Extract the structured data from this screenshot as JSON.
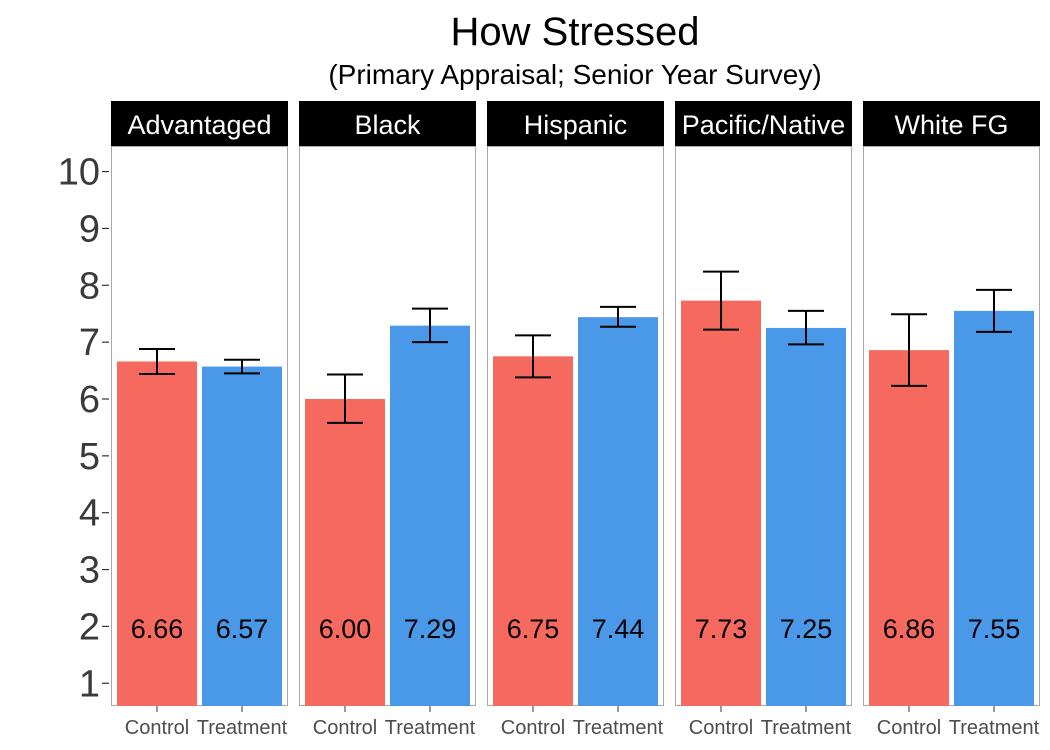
{
  "chart_data": {
    "type": "bar",
    "title": "How Stressed",
    "subtitle": "(Primary Appraisal; Senior Year Survey)",
    "xlabel": "",
    "ylabel": "",
    "ylim": [
      0.6,
      10.45
    ],
    "yticks": [
      "1",
      "2",
      "3",
      "4",
      "5",
      "6",
      "7",
      "8",
      "9",
      "10"
    ],
    "categories": [
      "Control",
      "Treatment"
    ],
    "grid": false,
    "legend": "none",
    "colors": {
      "Control": "#F5695F",
      "Treatment": "#4A98E8"
    },
    "panels": [
      {
        "name": "Advantaged",
        "bars": [
          {
            "group": "Control",
            "value": 6.66,
            "label": "6.66",
            "err_low": 6.44,
            "err_high": 6.88
          },
          {
            "group": "Treatment",
            "value": 6.57,
            "label": "6.57",
            "err_low": 6.45,
            "err_high": 6.69
          }
        ]
      },
      {
        "name": "Black",
        "bars": [
          {
            "group": "Control",
            "value": 6.0,
            "label": "6.00",
            "err_low": 5.58,
            "err_high": 6.43
          },
          {
            "group": "Treatment",
            "value": 7.29,
            "label": "7.29",
            "err_low": 7.0,
            "err_high": 7.59
          }
        ]
      },
      {
        "name": "Hispanic",
        "bars": [
          {
            "group": "Control",
            "value": 6.75,
            "label": "6.75",
            "err_low": 6.38,
            "err_high": 7.12
          },
          {
            "group": "Treatment",
            "value": 7.44,
            "label": "7.44",
            "err_low": 7.27,
            "err_high": 7.62
          }
        ]
      },
      {
        "name": "Pacific/Native",
        "bars": [
          {
            "group": "Control",
            "value": 7.73,
            "label": "7.73",
            "err_low": 7.22,
            "err_high": 8.24
          },
          {
            "group": "Treatment",
            "value": 7.25,
            "label": "7.25",
            "err_low": 6.96,
            "err_high": 7.55
          }
        ]
      },
      {
        "name": "White FG",
        "bars": [
          {
            "group": "Control",
            "value": 6.86,
            "label": "6.86",
            "err_low": 6.23,
            "err_high": 7.49
          },
          {
            "group": "Treatment",
            "value": 7.55,
            "label": "7.55",
            "err_low": 7.18,
            "err_high": 7.92
          }
        ]
      }
    ]
  }
}
